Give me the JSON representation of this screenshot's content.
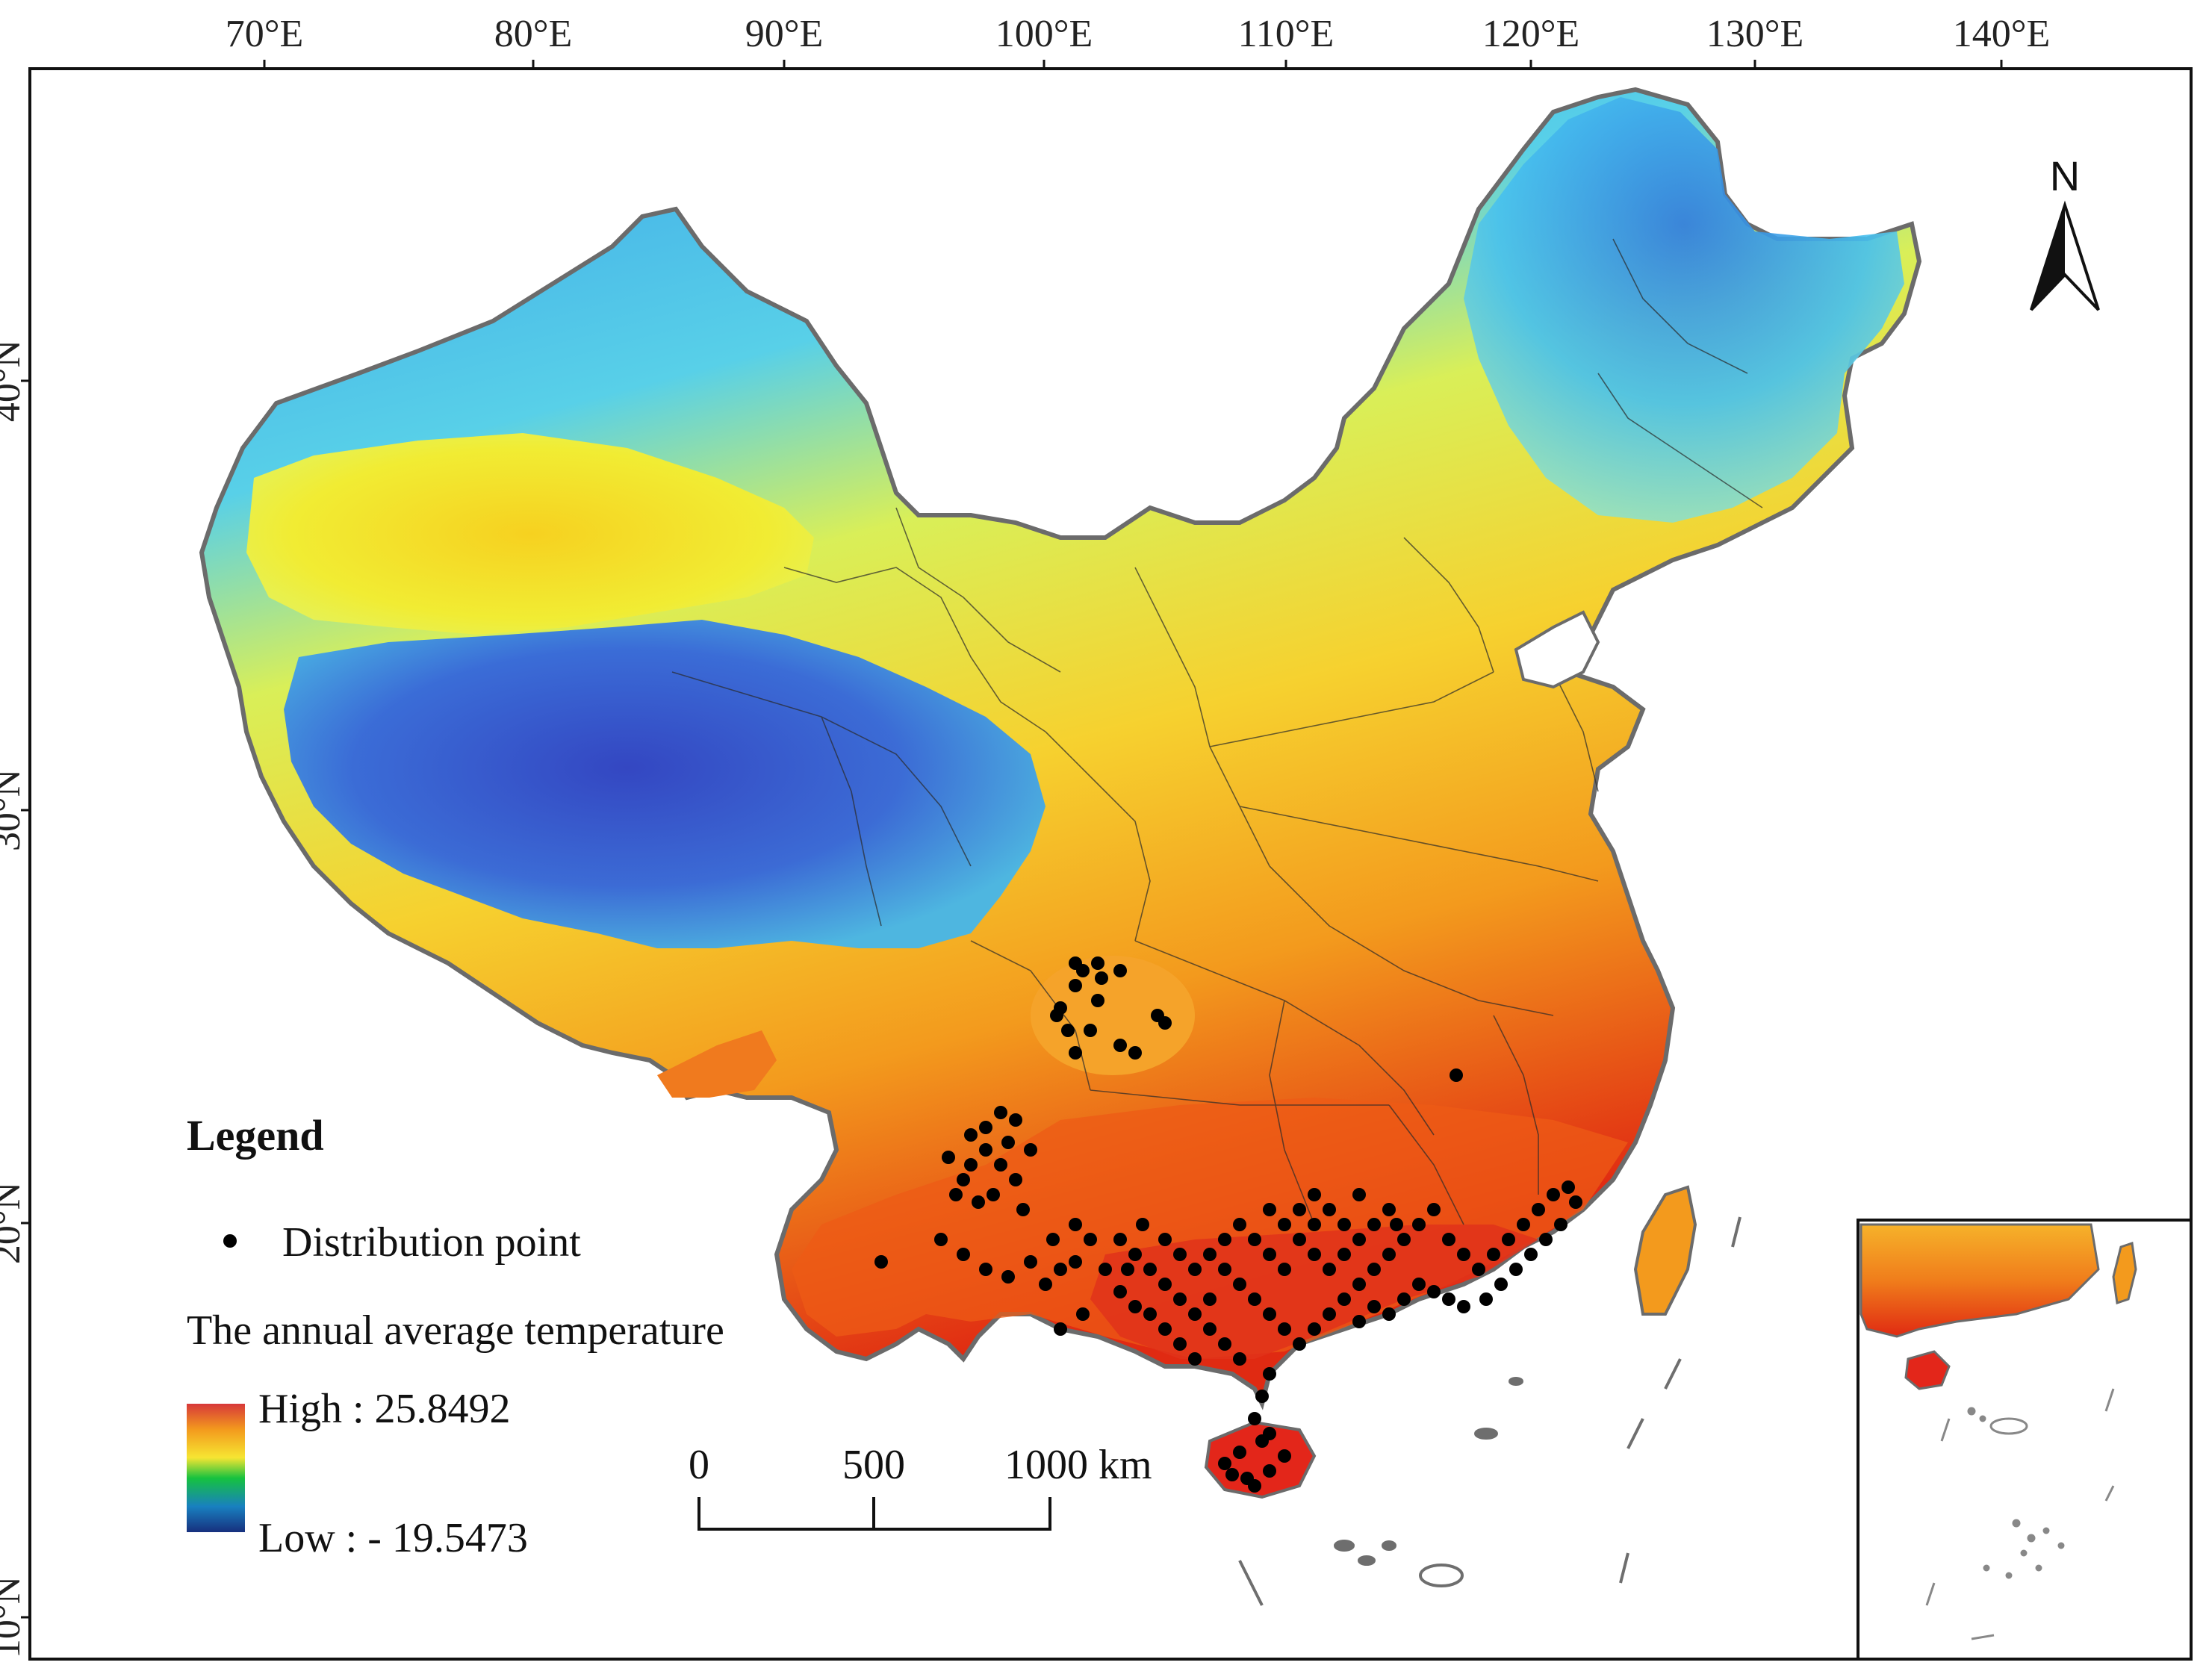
{
  "map": {
    "lon_ticks": [
      "70°E",
      "80°E",
      "90°E",
      "100°E",
      "110°E",
      "120°E",
      "130°E",
      "140°E"
    ],
    "lat_ticks": [
      "40°N",
      "30°N",
      "20°N",
      "10°N"
    ],
    "north_label": "N"
  },
  "legend": {
    "title": "Legend",
    "point_label": "Distribution point",
    "raster_label": "The annual average temperature",
    "high_label": "High : 25.8492",
    "low_label": "Low :  - 19.5473",
    "high_value": 25.8492,
    "low_value": -19.5473
  },
  "scalebar": {
    "labels": [
      "0",
      "500",
      "1000 km"
    ]
  },
  "colors": {
    "cold": "#2b3bd1",
    "cool": "#37c4f0",
    "mild": "#d8ef55",
    "warm": "#f5a623",
    "hot": "#e02a12",
    "point": "#000000",
    "islands": "#6e6e6e"
  }
}
